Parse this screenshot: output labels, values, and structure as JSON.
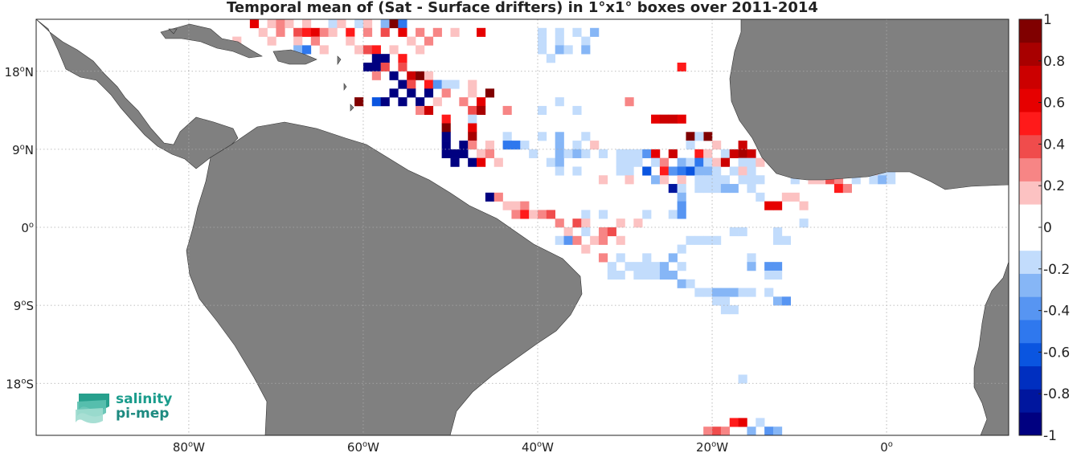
{
  "title": "Temporal mean of (Sat - Surface drifters) in 1°x1° boxes over 2011-2014",
  "axes": {
    "lon_ticks": [
      {
        "value": -80,
        "label": "80",
        "hemi": "W"
      },
      {
        "value": -60,
        "label": "60",
        "hemi": "W"
      },
      {
        "value": -40,
        "label": "40",
        "hemi": "W"
      },
      {
        "value": -20,
        "label": "20",
        "hemi": "W"
      },
      {
        "value": 0,
        "label": "0",
        "hemi": ""
      }
    ],
    "lat_ticks": [
      {
        "value": 18,
        "label": "18",
        "hemi": "N"
      },
      {
        "value": 9,
        "label": "9",
        "hemi": "N"
      },
      {
        "value": 0,
        "label": "0",
        "hemi": ""
      },
      {
        "value": -9,
        "label": "9",
        "hemi": "S"
      },
      {
        "value": -18,
        "label": "18",
        "hemi": "S"
      }
    ],
    "lon_range": [
      -97.5,
      14
    ],
    "lat_range": [
      -24,
      24
    ],
    "grid": true
  },
  "colorbar": {
    "ticks": [
      "1",
      "0.8",
      "0.6",
      "0.4",
      "0.2",
      "0",
      "-0.2",
      "-0.4",
      "-0.6",
      "-0.8",
      "-1"
    ],
    "range": [
      -1,
      1
    ],
    "colors": [
      "#000080",
      "#00169e",
      "#002fc0",
      "#0a55e0",
      "#2f78ee",
      "#5795f2",
      "#86b6f6",
      "#c2dcfc",
      "#ffffff",
      "#ffffff",
      "#fcc2c2",
      "#f78585",
      "#f04c4c",
      "#ff1a1a",
      "#e60000",
      "#cc0000",
      "#a80000",
      "#800000"
    ]
  },
  "land_color": "#808080",
  "logo": {
    "line1": "salinity",
    "line2": "pi-mep"
  },
  "chart_data": {
    "type": "heatmap",
    "title": "Temporal mean of (Sat - Surface drifters) in 1°x1° boxes over 2011-2014",
    "xlabel": "",
    "ylabel": "",
    "units": "",
    "cells": [
      [
        -73,
        23,
        0.6
      ],
      [
        -71,
        23,
        0.2
      ],
      [
        -70,
        23,
        0.3
      ],
      [
        -69,
        23,
        0.2
      ],
      [
        -67,
        23,
        0.2
      ],
      [
        -64,
        23,
        -0.2
      ],
      [
        -63,
        23,
        0.2
      ],
      [
        -61,
        23,
        -0.2
      ],
      [
        -60,
        23,
        0.2
      ],
      [
        -58,
        23,
        -0.3
      ],
      [
        -57,
        23,
        0.9
      ],
      [
        -56,
        23,
        -0.5
      ],
      [
        -72,
        22,
        0.2
      ],
      [
        -70,
        22,
        0.3
      ],
      [
        -68,
        22,
        0.4
      ],
      [
        -67,
        22,
        0.5
      ],
      [
        -66,
        22,
        0.6
      ],
      [
        -65,
        22,
        0.3
      ],
      [
        -64,
        22,
        0.2
      ],
      [
        -62,
        22,
        0.5
      ],
      [
        -60,
        22,
        0.3
      ],
      [
        -58,
        22,
        0.4
      ],
      [
        -56,
        22,
        0.6
      ],
      [
        -54,
        22,
        0.3
      ],
      [
        -52,
        22,
        0.3
      ],
      [
        -50,
        22,
        0.2
      ],
      [
        -47,
        22,
        0.6
      ],
      [
        -40,
        22,
        -0.2
      ],
      [
        -38,
        22,
        -0.2
      ],
      [
        -36,
        22,
        -0.2
      ],
      [
        -34,
        22,
        -0.3
      ],
      [
        -75,
        21,
        0.2
      ],
      [
        -71,
        21,
        0.2
      ],
      [
        -68,
        21,
        0.2
      ],
      [
        -66,
        21,
        0.3
      ],
      [
        -62,
        21,
        0.2
      ],
      [
        -55,
        21,
        0.2
      ],
      [
        -53,
        21,
        0.3
      ],
      [
        -40,
        21,
        -0.2
      ],
      [
        -38,
        21,
        -0.2
      ],
      [
        -35,
        21,
        -0.2
      ],
      [
        -68,
        20,
        -0.3
      ],
      [
        -67,
        20,
        -0.5
      ],
      [
        -65,
        20,
        0.2
      ],
      [
        -61,
        20,
        0.2
      ],
      [
        -60,
        20,
        0.4
      ],
      [
        -59,
        20,
        0.5
      ],
      [
        -57,
        20,
        0.2
      ],
      [
        -54,
        20,
        0.2
      ],
      [
        -40,
        20,
        -0.2
      ],
      [
        -38,
        20,
        -0.3
      ],
      [
        -37,
        20,
        -0.2
      ],
      [
        -35,
        20,
        -0.3
      ],
      [
        -59,
        19,
        -0.9
      ],
      [
        -58,
        19,
        -0.95
      ],
      [
        -56,
        19,
        0.5
      ],
      [
        -39,
        19,
        -0.2
      ],
      [
        -60,
        18,
        -1
      ],
      [
        -59,
        18,
        -0.95
      ],
      [
        -58,
        18,
        0.4
      ],
      [
        -56,
        18,
        0.4
      ],
      [
        -24,
        18,
        0.5
      ],
      [
        -59,
        17,
        0.3
      ],
      [
        -57,
        17,
        -0.95
      ],
      [
        -55,
        17,
        0.7
      ],
      [
        -54,
        17,
        0.9
      ],
      [
        -53,
        17,
        0.2
      ],
      [
        -56,
        16,
        -0.9
      ],
      [
        -55,
        16,
        0.4
      ],
      [
        -53,
        16,
        0.5
      ],
      [
        -52,
        16,
        -0.4
      ],
      [
        -51,
        16,
        -0.2
      ],
      [
        -50,
        16,
        -0.2
      ],
      [
        -48,
        16,
        0.2
      ],
      [
        -57,
        15,
        -0.9
      ],
      [
        -55,
        15,
        -1
      ],
      [
        -53,
        15,
        -0.95
      ],
      [
        -51,
        15,
        0.3
      ],
      [
        -48,
        15,
        0.2
      ],
      [
        -46,
        15,
        0.9
      ],
      [
        -61,
        14,
        0.9
      ],
      [
        -59,
        14,
        -0.6
      ],
      [
        -58,
        14,
        -0.95
      ],
      [
        -56,
        14,
        -0.95
      ],
      [
        -54,
        14,
        -1
      ],
      [
        -52,
        14,
        0.2
      ],
      [
        -49,
        14,
        0.3
      ],
      [
        -47,
        14,
        0.6
      ],
      [
        -38,
        14,
        -0.2
      ],
      [
        -30,
        14,
        0.3
      ],
      [
        -54,
        13,
        0.3
      ],
      [
        -53,
        13,
        0.7
      ],
      [
        -48,
        13,
        0.4
      ],
      [
        -47,
        13,
        0.8
      ],
      [
        -44,
        13,
        0.3
      ],
      [
        -36,
        13,
        -0.2
      ],
      [
        -40,
        13,
        -0.2
      ],
      [
        -51,
        12,
        0.5
      ],
      [
        -48,
        12,
        -0.2
      ],
      [
        -24,
        12,
        0.6
      ],
      [
        -27,
        12,
        0.6
      ],
      [
        -26,
        12,
        0.7
      ],
      [
        -25,
        12,
        0.7
      ],
      [
        -51,
        11,
        0.9
      ],
      [
        -48,
        11,
        0.6
      ],
      [
        -13,
        11,
        0.4
      ],
      [
        -12,
        11,
        0.5
      ],
      [
        -11,
        11,
        0.8
      ],
      [
        -51,
        10,
        -0.95
      ],
      [
        -48,
        10,
        0.8
      ],
      [
        -44,
        10,
        -0.2
      ],
      [
        -40,
        10,
        -0.2
      ],
      [
        -38,
        10,
        -0.3
      ],
      [
        -35,
        10,
        -0.2
      ],
      [
        -23,
        10,
        0.9
      ],
      [
        -21,
        10,
        0.9
      ],
      [
        -22,
        10,
        -0.2
      ],
      [
        -51,
        9,
        -1
      ],
      [
        -49,
        9,
        -0.95
      ],
      [
        -48,
        9,
        0.3
      ],
      [
        -46,
        9,
        0.2
      ],
      [
        -44,
        9,
        -0.5
      ],
      [
        -43,
        9,
        -0.5
      ],
      [
        -42,
        9,
        -0.2
      ],
      [
        -38,
        9,
        -0.3
      ],
      [
        -36,
        9,
        -0.2
      ],
      [
        -34,
        9,
        0.2
      ],
      [
        -23,
        9,
        -0.2
      ],
      [
        -20,
        9,
        0.2
      ],
      [
        -17,
        9,
        0.7
      ],
      [
        -51,
        8,
        -1
      ],
      [
        -50,
        8,
        -0.95
      ],
      [
        -49,
        8,
        -1
      ],
      [
        -47,
        8,
        0.2
      ],
      [
        -46,
        8,
        0.3
      ],
      [
        -41,
        8,
        -0.2
      ],
      [
        -38,
        8,
        -0.3
      ],
      [
        -37,
        8,
        -0.2
      ],
      [
        -36,
        8,
        -0.3
      ],
      [
        -35,
        8,
        -0.2
      ],
      [
        -33,
        8,
        -0.2
      ],
      [
        -31,
        8,
        -0.2
      ],
      [
        -30,
        8,
        -0.2
      ],
      [
        -29,
        8,
        -0.2
      ],
      [
        -28,
        8,
        -0.4
      ],
      [
        -27,
        8,
        0.6
      ],
      [
        -25,
        8,
        0.7
      ],
      [
        -22,
        8,
        0.5
      ],
      [
        -21,
        8,
        0.2
      ],
      [
        -19,
        8,
        -0.2
      ],
      [
        -18,
        8,
        0.7
      ],
      [
        -17,
        8,
        0.8
      ],
      [
        -16,
        8,
        0.7
      ],
      [
        -14,
        8,
        0.3
      ],
      [
        -12,
        8,
        0.3
      ],
      [
        -11,
        8,
        0.9
      ],
      [
        -50,
        7,
        -1
      ],
      [
        -48,
        7,
        -0.95
      ],
      [
        -47,
        7,
        0.6
      ],
      [
        -45,
        7,
        0.2
      ],
      [
        -39,
        7,
        -0.2
      ],
      [
        -38,
        7,
        -0.3
      ],
      [
        -31,
        7,
        -0.2
      ],
      [
        -30,
        7,
        -0.2
      ],
      [
        -29,
        7,
        -0.2
      ],
      [
        -27,
        7,
        -0.2
      ],
      [
        -26,
        7,
        0.3
      ],
      [
        -24,
        7,
        -0.3
      ],
      [
        -23,
        7,
        -0.2
      ],
      [
        -22,
        7,
        -0.5
      ],
      [
        -21,
        7,
        -0.2
      ],
      [
        -20,
        7,
        0.2
      ],
      [
        -19,
        7,
        0.7
      ],
      [
        -17,
        7,
        -0.2
      ],
      [
        -16,
        7,
        -0.2
      ],
      [
        -15,
        7,
        0.2
      ],
      [
        -12,
        7,
        0.2
      ],
      [
        -38,
        6,
        -0.2
      ],
      [
        -36,
        6,
        -0.2
      ],
      [
        -31,
        6,
        -0.2
      ],
      [
        -30,
        6,
        -0.2
      ],
      [
        -28,
        6,
        -0.6
      ],
      [
        -26,
        6,
        0.5
      ],
      [
        -25,
        6,
        -0.4
      ],
      [
        -24,
        6,
        -0.5
      ],
      [
        -23,
        6,
        -0.6
      ],
      [
        -22,
        6,
        -0.3
      ],
      [
        -21,
        6,
        -0.3
      ],
      [
        -20,
        6,
        -0.2
      ],
      [
        -18,
        6,
        -0.2
      ],
      [
        -17,
        6,
        0.2
      ],
      [
        -16,
        6,
        -0.2
      ],
      [
        -11,
        6,
        0.3
      ],
      [
        -9,
        6,
        0.2
      ],
      [
        -6,
        6,
        0.6
      ],
      [
        -5,
        6,
        0.5
      ],
      [
        -3,
        6,
        0.2
      ],
      [
        -2,
        6,
        0.2
      ],
      [
        -1,
        6,
        -0.2
      ],
      [
        0,
        6,
        -0.2
      ],
      [
        4,
        6,
        0.6
      ],
      [
        5,
        6,
        -0.3
      ],
      [
        7,
        6,
        0.8
      ],
      [
        -33,
        5,
        0.2
      ],
      [
        -30,
        5,
        0.2
      ],
      [
        -27,
        5,
        -0.3
      ],
      [
        -26,
        5,
        0.2
      ],
      [
        -24,
        5,
        0.2
      ],
      [
        -22,
        5,
        -0.2
      ],
      [
        -21,
        5,
        -0.2
      ],
      [
        -20,
        5,
        -0.2
      ],
      [
        -19,
        5,
        -0.2
      ],
      [
        -17,
        5,
        -0.2
      ],
      [
        -16,
        5,
        -0.2
      ],
      [
        -15,
        5,
        -0.2
      ],
      [
        -11,
        5,
        -0.2
      ],
      [
        -9,
        5,
        0.2
      ],
      [
        -8,
        5,
        0.2
      ],
      [
        -7,
        5,
        0.4
      ],
      [
        -6,
        5,
        0.3
      ],
      [
        -4,
        5,
        -0.2
      ],
      [
        -2,
        5,
        -0.2
      ],
      [
        -1,
        5,
        -0.3
      ],
      [
        0,
        5,
        -0.2
      ],
      [
        -25,
        4,
        -0.8
      ],
      [
        -24,
        4,
        -0.2
      ],
      [
        -22,
        4,
        -0.2
      ],
      [
        -21,
        4,
        -0.2
      ],
      [
        -20,
        4,
        -0.2
      ],
      [
        -19,
        4,
        -0.3
      ],
      [
        -18,
        4,
        -0.3
      ],
      [
        -16,
        4,
        -0.2
      ],
      [
        -6,
        4,
        0.5
      ],
      [
        -5,
        4,
        0.3
      ],
      [
        -46,
        3,
        -1
      ],
      [
        -45,
        3,
        0.3
      ],
      [
        -24,
        3,
        -0.3
      ],
      [
        -15,
        3,
        -0.2
      ],
      [
        -12,
        3,
        0.2
      ],
      [
        -11,
        3,
        0.2
      ],
      [
        -44,
        2,
        0.2
      ],
      [
        -43,
        2,
        0.2
      ],
      [
        -42,
        2,
        0.3
      ],
      [
        -24,
        2,
        -0.4
      ],
      [
        -14,
        2,
        0.6
      ],
      [
        -13,
        2,
        0.6
      ],
      [
        -10,
        2,
        0.2
      ],
      [
        -43,
        1,
        0.3
      ],
      [
        -42,
        1,
        0.5
      ],
      [
        -41,
        1,
        0.2
      ],
      [
        -40,
        1,
        0.3
      ],
      [
        -39,
        1,
        0.4
      ],
      [
        -35,
        1,
        -0.2
      ],
      [
        -33,
        1,
        -0.2
      ],
      [
        -28,
        1,
        -0.2
      ],
      [
        -25,
        1,
        -0.2
      ],
      [
        -24,
        1,
        -0.4
      ],
      [
        -38,
        0,
        0.3
      ],
      [
        -36,
        0,
        0.4
      ],
      [
        -35,
        0,
        0.2
      ],
      [
        -31,
        0,
        0.2
      ],
      [
        -29,
        0,
        0.2
      ],
      [
        -10,
        0,
        -0.2
      ],
      [
        -37,
        -1,
        0.2
      ],
      [
        -35,
        -1,
        -0.2
      ],
      [
        -33,
        -1,
        0.3
      ],
      [
        -32,
        -1,
        0.4
      ],
      [
        -18,
        -1,
        -0.2
      ],
      [
        -17,
        -1,
        -0.2
      ],
      [
        -13,
        -1,
        -0.2
      ],
      [
        -38,
        -2,
        -0.2
      ],
      [
        -37,
        -2,
        -0.4
      ],
      [
        -36,
        -2,
        0.3
      ],
      [
        -34,
        -2,
        0.2
      ],
      [
        -33,
        -2,
        0.3
      ],
      [
        -31,
        -2,
        0.2
      ],
      [
        -23,
        -2,
        -0.2
      ],
      [
        -22,
        -2,
        -0.2
      ],
      [
        -21,
        -2,
        -0.2
      ],
      [
        -20,
        -2,
        -0.2
      ],
      [
        -13,
        -2,
        -0.2
      ],
      [
        -12,
        -2,
        -0.2
      ],
      [
        -35,
        -3,
        0.2
      ],
      [
        -24,
        -3,
        -0.2
      ],
      [
        -33,
        -4,
        0.3
      ],
      [
        -31,
        -4,
        -0.2
      ],
      [
        -28,
        -4,
        -0.2
      ],
      [
        -25,
        -4,
        -0.3
      ],
      [
        -16,
        -4,
        -0.2
      ],
      [
        -32,
        -5,
        -0.2
      ],
      [
        -30,
        -5,
        -0.2
      ],
      [
        -29,
        -5,
        -0.2
      ],
      [
        -28,
        -5,
        -0.2
      ],
      [
        -27,
        -5,
        -0.2
      ],
      [
        -26,
        -5,
        -0.3
      ],
      [
        -24,
        -5,
        -0.2
      ],
      [
        -16,
        -5,
        -0.3
      ],
      [
        -14,
        -5,
        -0.4
      ],
      [
        -13,
        -5,
        -0.4
      ],
      [
        -32,
        -6,
        -0.2
      ],
      [
        -31,
        -6,
        -0.2
      ],
      [
        -29,
        -6,
        -0.2
      ],
      [
        -28,
        -6,
        -0.2
      ],
      [
        -27,
        -6,
        -0.2
      ],
      [
        -26,
        -6,
        -0.3
      ],
      [
        -25,
        -6,
        -0.3
      ],
      [
        -14,
        -6,
        -0.2
      ],
      [
        -13,
        -6,
        -0.2
      ],
      [
        -24,
        -7,
        -0.3
      ],
      [
        -23,
        -7,
        -0.2
      ],
      [
        -22,
        -8,
        -0.2
      ],
      [
        -21,
        -8,
        -0.2
      ],
      [
        -20,
        -8,
        -0.3
      ],
      [
        -19,
        -8,
        -0.3
      ],
      [
        -18,
        -8,
        -0.3
      ],
      [
        -17,
        -8,
        -0.2
      ],
      [
        -16,
        -8,
        -0.2
      ],
      [
        -14,
        -8,
        -0.2
      ],
      [
        -20,
        -9,
        -0.2
      ],
      [
        -19,
        -9,
        -0.2
      ],
      [
        -13,
        -9,
        -0.3
      ],
      [
        -12,
        -9,
        -0.4
      ],
      [
        -19,
        -10,
        -0.2
      ],
      [
        -18,
        -10,
        -0.2
      ],
      [
        -17,
        -18,
        -0.2
      ],
      [
        -18,
        -23,
        0.5
      ],
      [
        -17,
        -23,
        0.6
      ],
      [
        -15,
        -23,
        -0.2
      ],
      [
        -21,
        -24,
        0.3
      ],
      [
        -20,
        -24,
        0.4
      ],
      [
        -19,
        -24,
        0.3
      ],
      [
        -16,
        -24,
        -0.3
      ],
      [
        -14,
        -24,
        -0.4
      ],
      [
        -13,
        -24,
        -0.3
      ]
    ]
  }
}
